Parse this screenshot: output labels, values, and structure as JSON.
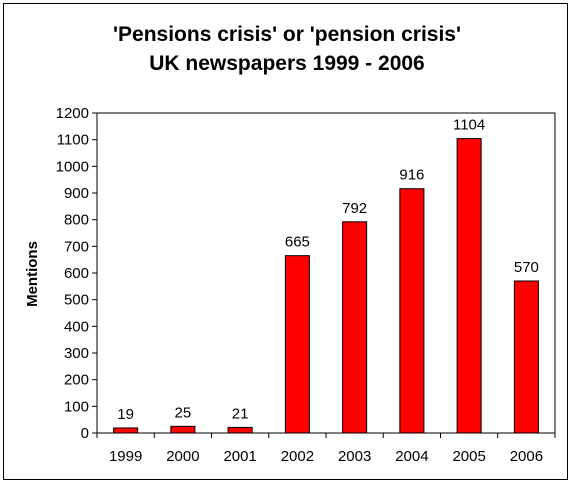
{
  "chart_data": {
    "type": "bar",
    "title": [
      "'Pensions crisis' or 'pension crisis'",
      "UK newspapers 1999 - 2006"
    ],
    "xlabel": "",
    "ylabel": "Mentions",
    "categories": [
      "1999",
      "2000",
      "2001",
      "2002",
      "2003",
      "2004",
      "2005",
      "2006"
    ],
    "values": [
      19,
      25,
      21,
      665,
      792,
      916,
      1104,
      570
    ],
    "data_labels": [
      "19",
      "25",
      "21",
      "665",
      "792",
      "916",
      "1104",
      "570"
    ],
    "ylim": [
      0,
      1200
    ],
    "yticks": [
      0,
      100,
      200,
      300,
      400,
      500,
      600,
      700,
      800,
      900,
      1000,
      1100,
      1200
    ],
    "grid": false,
    "legend": "none",
    "colors": {
      "bar_fill": "#ff0000",
      "bar_stroke": "#000000",
      "plot_border": "#000000",
      "background": "#ffffff"
    }
  }
}
